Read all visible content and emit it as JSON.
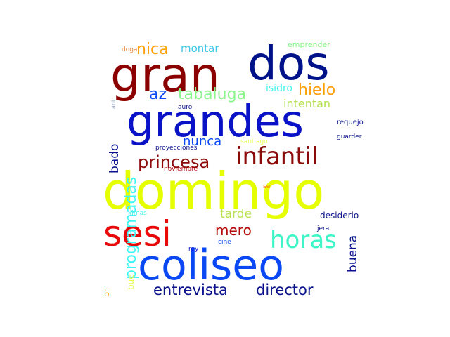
{
  "words": [
    {
      "text": "domingo",
      "color": "#e5ff00"
    },
    {
      "text": "coliseo",
      "color": "#0a48f5"
    },
    {
      "text": "grandes",
      "color": "#0a12c8"
    },
    {
      "text": "gran",
      "color": "#8b0000"
    },
    {
      "text": "dos",
      "color": "#00128a"
    },
    {
      "text": "sesi",
      "color": "#e80a0a"
    },
    {
      "text": "infantil",
      "color": "#8b0a0a"
    },
    {
      "text": "horas",
      "color": "#3ef5c8"
    },
    {
      "text": "princesa",
      "color": "#8b0a0a"
    },
    {
      "text": "director",
      "color": "#0a128b"
    },
    {
      "text": "entrevista",
      "color": "#0a128b"
    },
    {
      "text": "mero",
      "color": "#b80a0a"
    },
    {
      "text": "tabaluga",
      "color": "#8af58a"
    },
    {
      "text": "hielo",
      "color": "#ff9f0a"
    },
    {
      "text": "nica",
      "color": "#ffa20a"
    },
    {
      "text": "az",
      "color": "#0a48f5"
    },
    {
      "text": "nunca",
      "color": "#0a48f5"
    },
    {
      "text": "tarde",
      "color": "#b8e052"
    },
    {
      "text": "intentan",
      "color": "#b8e052"
    },
    {
      "text": "montar",
      "color": "#3ec8e8"
    },
    {
      "text": "isidro",
      "color": "#3ef5e8"
    },
    {
      "text": "desiderio",
      "color": "#0a128b"
    },
    {
      "text": "emprender",
      "color": "#8af58a"
    },
    {
      "text": "auro",
      "color": "#0a128b"
    },
    {
      "text": "requejo",
      "color": "#0a128b"
    },
    {
      "text": "guarder",
      "color": "#0a128b"
    },
    {
      "text": "santiago",
      "color": "#e5ff52"
    },
    {
      "text": "proyecciones",
      "color": "#0a128b"
    },
    {
      "text": "noviembre",
      "color": "#b80a0a"
    },
    {
      "text": "ser",
      "color": "#ff7a1a"
    },
    {
      "text": "ximas",
      "color": "#3ef5e8"
    },
    {
      "text": "jera",
      "color": "#0a128b"
    },
    {
      "text": "cine",
      "color": "#0a48f5"
    },
    {
      "text": "rey",
      "color": "#0a12c8"
    },
    {
      "text": "doga",
      "color": "#e8883e"
    },
    {
      "text": "programadas",
      "color": "#3ef5f5"
    },
    {
      "text": "bado",
      "color": "#0a128b"
    },
    {
      "text": "buena",
      "color": "#0a128b"
    },
    {
      "text": "bue",
      "color": "#e5ff52"
    },
    {
      "text": "pr",
      "color": "#ffa20a"
    },
    {
      "text": "ani",
      "color": "#8a9ab8"
    }
  ]
}
